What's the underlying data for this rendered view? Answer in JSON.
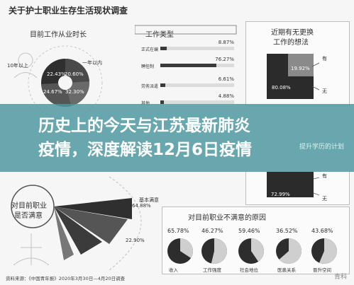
{
  "title": "关于护士职业生存生活现状调查",
  "sections": {
    "tenure": {
      "title": "目前工作从业时长",
      "labels": [
        "10年以上",
        "一年以内"
      ],
      "pcts": [
        "22.43%",
        "20.60%",
        "24.67%",
        "32.30%"
      ]
    },
    "work_type": {
      "title": "工作类型",
      "bars": [
        {
          "label": "正式在编",
          "value": "8.87%",
          "frac": 0.0887
        },
        {
          "label": "聘任制",
          "value": "76.27%",
          "frac": 0.7627
        },
        {
          "label": "劳务派遣",
          "value": "6.61%",
          "frac": 0.0661
        },
        {
          "label": "其他",
          "value": "4.88%",
          "frac": 0.0488
        }
      ]
    },
    "change_job": {
      "title_line1": "近期有无更换",
      "title_line2": "工作的想法",
      "pcts": [
        "19.92%",
        "80.08%"
      ],
      "labels": [
        "有",
        "无"
      ]
    },
    "education": {
      "title_fragment": "提升学历的计划",
      "pct": "72.99%",
      "labels": [
        "有",
        "无"
      ]
    },
    "satisfaction": {
      "title_line1": "对目前职业",
      "title_line2": "是否满意",
      "labels": [
        "基本满意"
      ],
      "pcts": [
        "64.88%",
        "22.90%"
      ]
    },
    "reasons": {
      "title": "对目前职业不满意的原因",
      "items": [
        {
          "pct": "65.78%",
          "label": "收入"
        },
        {
          "pct": "46.27%",
          "label": "工作强度"
        },
        {
          "pct": "59.46%",
          "label": "社会地位"
        },
        {
          "pct": "36.52%",
          "label": "医患关系"
        },
        {
          "pct": "43.68%",
          "label": "晋升空间"
        }
      ]
    }
  },
  "banner": {
    "line1": "历史上的今天与江苏最新肺炎",
    "line2": "疫情，深度解读12月6日疫情"
  },
  "footer": {
    "text": "资料来源：《中国青年报》2020年3月30日—4月20日调查",
    "watermark": "青科"
  }
}
